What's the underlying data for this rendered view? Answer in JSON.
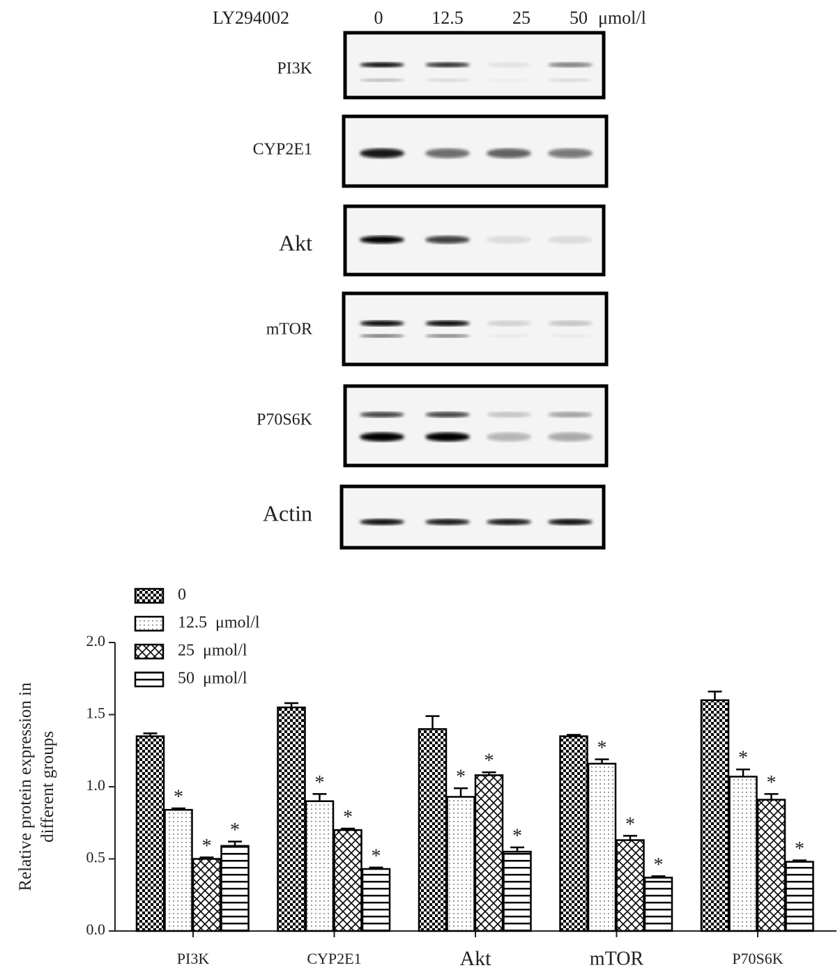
{
  "blot": {
    "treatment": "LY294002",
    "lanes": [
      "0",
      "12.5",
      "25",
      "50"
    ],
    "unit": "μmol/l",
    "rows": [
      "PI3K",
      "CYP2E1",
      "Akt",
      "mTOR",
      "P70S6K",
      "Actin"
    ]
  },
  "chart_data": {
    "type": "bar",
    "ylabel": [
      "Relative protein expression in",
      "different groups"
    ],
    "categories": [
      "PI3K",
      "CYP2E1",
      "Akt",
      "mTOR",
      "P70S6K"
    ],
    "ylim": [
      0,
      2.0
    ],
    "yticks": [
      {
        "value": 0,
        "label": "0.0"
      },
      {
        "value": 0.5,
        "label": "0.5"
      },
      {
        "value": 1.0,
        "label": "1.0"
      },
      {
        "value": 1.5,
        "label": "1.5"
      },
      {
        "value": 2.0,
        "label": "2.0"
      }
    ],
    "series": [
      {
        "name": "0",
        "color": "#000000",
        "pattern": "checker",
        "values": [
          1.35,
          1.55,
          1.4,
          1.35,
          1.6
        ],
        "errors": [
          0.02,
          0.03,
          0.09,
          0.01,
          0.06
        ]
      },
      {
        "name": "12.5  μmol/l",
        "color": "#000000",
        "pattern": "dots",
        "values": [
          0.84,
          0.9,
          0.93,
          1.16,
          1.07
        ],
        "errors": [
          0.01,
          0.05,
          0.06,
          0.03,
          0.05
        ],
        "significance": [
          "*",
          "*",
          "*",
          "*",
          "*"
        ]
      },
      {
        "name": "25  μmol/l",
        "color": "#000000",
        "pattern": "crosshatch",
        "values": [
          0.5,
          0.7,
          1.08,
          0.63,
          0.91
        ],
        "errors": [
          0.01,
          0.01,
          0.02,
          0.03,
          0.04
        ],
        "significance": [
          "*",
          "*",
          "*",
          "*",
          "*"
        ]
      },
      {
        "name": "50  μmol/l",
        "color": "#000000",
        "pattern": "hlines",
        "values": [
          0.59,
          0.43,
          0.55,
          0.37,
          0.48
        ],
        "errors": [
          0.03,
          0.01,
          0.03,
          0.01,
          0.01
        ],
        "significance": [
          "*",
          "*",
          "*",
          "*",
          "*"
        ]
      }
    ]
  }
}
